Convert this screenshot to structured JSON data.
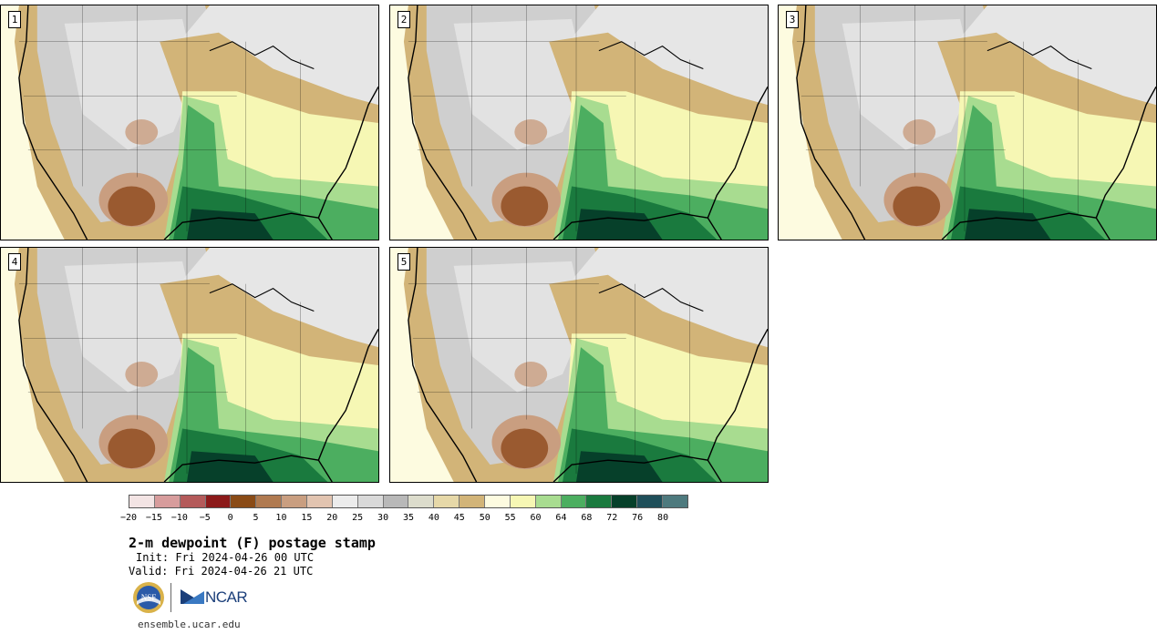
{
  "panels": [
    {
      "label": "1"
    },
    {
      "label": "2"
    },
    {
      "label": "3"
    },
    {
      "label": "4"
    },
    {
      "label": "5"
    }
  ],
  "colorbar": {
    "colors": [
      "#f3e4e4",
      "#d79c9c",
      "#b45a5a",
      "#8c1a1a",
      "#8a4b16",
      "#b07a50",
      "#c99e80",
      "#e2c4b0",
      "#ececec",
      "#d9d9d9",
      "#b8b8b8",
      "#dcdccc",
      "#e6d8a8",
      "#d2b478",
      "#fdfbe0",
      "#f6f7b4",
      "#a8dc90",
      "#4cae60",
      "#1a7a3e",
      "#06402a",
      "#1f4f5a",
      "#4e7a7e"
    ],
    "tick_labels": [
      "−20",
      "−15",
      "−10",
      "−5",
      "0",
      "5",
      "10",
      "15",
      "20",
      "25",
      "30",
      "35",
      "40",
      "45",
      "50",
      "55",
      "60",
      "64",
      "68",
      "72",
      "76",
      "80"
    ]
  },
  "map_colors": {
    "ocean_west": "#fdfbe0",
    "land_gray": "#cfcfcf",
    "land_light": "#e6e6e6",
    "tan": "#d2b478",
    "yellow": "#f6f7b4",
    "light_green": "#a8dc90",
    "green": "#4cae60",
    "dark_green": "#1a7a3e",
    "darkest_green": "#06402a",
    "brown": "#9a5a30",
    "light_brown": "#c99e80",
    "lines": "#000000"
  },
  "title": "2-m dewpoint (F) postage stamp",
  "init": "Init: Fri 2024-04-26 00 UTC",
  "valid": "Valid: Fri 2024-04-26 21 UTC",
  "logos": {
    "nsf": "NSF",
    "ncar": "NCAR"
  },
  "url": "ensemble.ucar.edu"
}
